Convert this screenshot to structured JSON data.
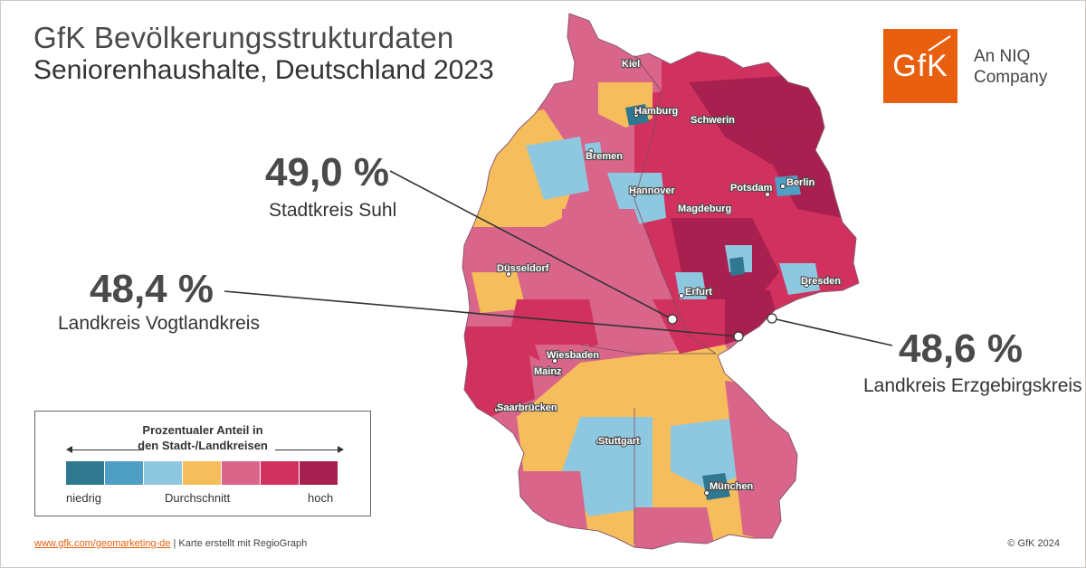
{
  "title": {
    "line1": "GfK Bevölkerungsstrukturdaten",
    "line2": "Seniorenhaushalte, Deutschland 2023"
  },
  "logo": {
    "mark": "GfK",
    "line1": "An NIQ",
    "line2": "Company",
    "color": "#e8600f"
  },
  "callouts": [
    {
      "value": "49,0 %",
      "label": "Stadtkreis Suhl"
    },
    {
      "value": "48,4 %",
      "label": "Landkreis Vogtlandkreis"
    },
    {
      "value": "48,6 %",
      "label": "Landkreis Erzgebirgskreis"
    }
  ],
  "cities": [
    {
      "name": "Kiel"
    },
    {
      "name": "Hamburg"
    },
    {
      "name": "Schwerin"
    },
    {
      "name": "Bremen"
    },
    {
      "name": "Hannover"
    },
    {
      "name": "Potsdam"
    },
    {
      "name": "Berlin"
    },
    {
      "name": "Magdeburg"
    },
    {
      "name": "Düsseldorf"
    },
    {
      "name": "Erfurt"
    },
    {
      "name": "Dresden"
    },
    {
      "name": "Wiesbaden"
    },
    {
      "name": "Mainz"
    },
    {
      "name": "Saarbrücken"
    },
    {
      "name": "Stuttgart"
    },
    {
      "name": "München"
    }
  ],
  "legend": {
    "title_line1": "Prozentualer Anteil in",
    "title_line2": "den Stadt-/Landkreisen",
    "low": "niedrig",
    "mid": "Durchschnitt",
    "high": "hoch",
    "colors": [
      "#2f7890",
      "#4f9ec4",
      "#8ec8e0",
      "#f6bd5c",
      "#d9668a",
      "#d1315f",
      "#a8204f"
    ]
  },
  "footer": {
    "link": "www.gfk.com/geomarketing-de",
    "separator": " | ",
    "credit": "Karte erstellt mit RegioGraph",
    "copyright": "© GfK 2024"
  }
}
